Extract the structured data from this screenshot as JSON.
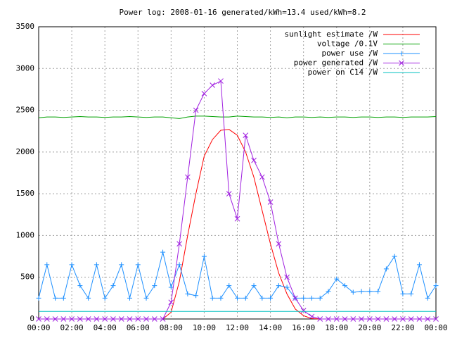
{
  "chart_data": {
    "type": "line",
    "title": "Power log: 2008-01-16 generated/kWh=13.4 used/kWh=8.2",
    "x": [
      0,
      0.5,
      1,
      1.5,
      2,
      2.5,
      3,
      3.5,
      4,
      4.5,
      5,
      5.5,
      6,
      6.5,
      7,
      7.5,
      8,
      8.5,
      9,
      9.5,
      10,
      10.5,
      11,
      11.5,
      12,
      12.5,
      13,
      13.5,
      14,
      14.5,
      15,
      15.5,
      16,
      16.5,
      17,
      17.5,
      18,
      18.5,
      19,
      19.5,
      20,
      20.5,
      21,
      21.5,
      22,
      22.5,
      23,
      23.5,
      24
    ],
    "series": [
      {
        "name": "sunlight estimate /W",
        "color": "#ff0000",
        "marker": "none",
        "values": [
          0,
          0,
          0,
          0,
          0,
          0,
          0,
          0,
          0,
          0,
          0,
          0,
          0,
          0,
          0,
          0,
          80,
          450,
          1000,
          1500,
          1950,
          2150,
          2260,
          2270,
          2200,
          2000,
          1700,
          1300,
          900,
          550,
          300,
          120,
          40,
          5,
          0,
          0,
          0,
          0,
          0,
          0,
          0,
          0,
          0,
          0,
          0,
          0,
          0,
          0,
          0
        ]
      },
      {
        "name": "voltage /0.1V",
        "color": "#00a000",
        "marker": "none",
        "values": [
          2410,
          2420,
          2420,
          2415,
          2420,
          2425,
          2420,
          2420,
          2415,
          2420,
          2420,
          2425,
          2420,
          2415,
          2420,
          2420,
          2410,
          2400,
          2420,
          2430,
          2430,
          2425,
          2420,
          2420,
          2430,
          2425,
          2420,
          2420,
          2415,
          2420,
          2410,
          2420,
          2420,
          2415,
          2420,
          2415,
          2420,
          2420,
          2415,
          2420,
          2420,
          2415,
          2420,
          2420,
          2415,
          2420,
          2420,
          2420,
          2425
        ]
      },
      {
        "name": "power use /W",
        "color": "#1e90ff",
        "marker": "plus",
        "values": [
          250,
          650,
          250,
          250,
          650,
          400,
          250,
          650,
          250,
          400,
          650,
          250,
          650,
          250,
          400,
          800,
          380,
          650,
          300,
          280,
          750,
          250,
          250,
          400,
          250,
          250,
          400,
          250,
          250,
          400,
          380,
          250,
          250,
          250,
          250,
          330,
          480,
          400,
          320,
          330,
          330,
          330,
          600,
          750,
          300,
          300,
          650,
          250,
          400
        ]
      },
      {
        "name": "power generated /W",
        "color": "#a020e0",
        "marker": "cross",
        "values": [
          0,
          0,
          0,
          0,
          0,
          0,
          0,
          0,
          0,
          0,
          0,
          0,
          0,
          0,
          0,
          0,
          200,
          900,
          1700,
          2500,
          2700,
          2800,
          2850,
          1500,
          1200,
          2200,
          1900,
          1700,
          1400,
          900,
          500,
          250,
          100,
          30,
          0,
          0,
          0,
          0,
          0,
          0,
          0,
          0,
          0,
          0,
          0,
          0,
          0,
          0,
          0
        ]
      },
      {
        "name": "power on C14 /W",
        "color": "#00c0c0",
        "marker": "none",
        "values": [
          90,
          90,
          90,
          90,
          90,
          90,
          90,
          90,
          90,
          90,
          90,
          90,
          90,
          90,
          90,
          90,
          90,
          90,
          90,
          90,
          90,
          90,
          90,
          90,
          90,
          90,
          90,
          90,
          90,
          90,
          90,
          90,
          90,
          90,
          90,
          90,
          90,
          90,
          90,
          90,
          90,
          90,
          90,
          90,
          90,
          90,
          90,
          90,
          90
        ]
      }
    ],
    "xlim": [
      0,
      24
    ],
    "xticks": [
      {
        "value": 0,
        "label": "00:00"
      },
      {
        "value": 2,
        "label": "02:00"
      },
      {
        "value": 4,
        "label": "04:00"
      },
      {
        "value": 6,
        "label": "06:00"
      },
      {
        "value": 8,
        "label": "08:00"
      },
      {
        "value": 10,
        "label": "10:00"
      },
      {
        "value": 12,
        "label": "12:00"
      },
      {
        "value": 14,
        "label": "14:00"
      },
      {
        "value": 16,
        "label": "16:00"
      },
      {
        "value": 18,
        "label": "18:00"
      },
      {
        "value": 20,
        "label": "20:00"
      },
      {
        "value": 22,
        "label": "22:00"
      },
      {
        "value": 24,
        "label": "00:00"
      }
    ],
    "ylim": [
      0,
      3500
    ],
    "yticks": [
      0,
      500,
      1000,
      1500,
      2000,
      2500,
      3000,
      3500
    ],
    "grid": true,
    "legend": "top-right"
  }
}
